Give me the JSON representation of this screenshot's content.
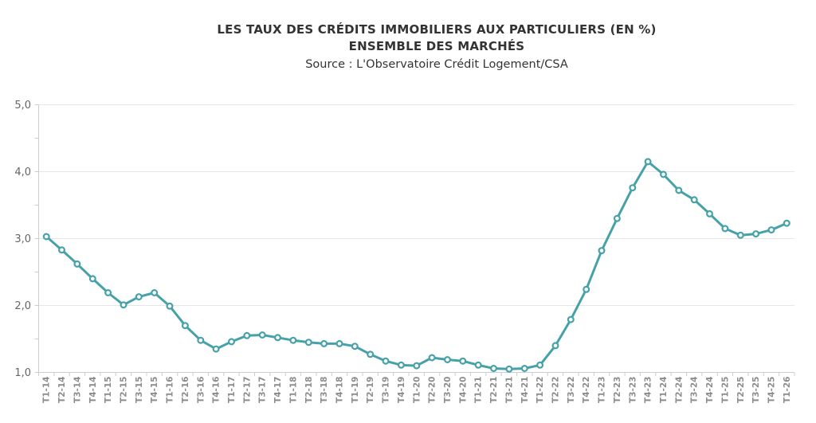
{
  "chart_data": {
    "type": "line",
    "title": "LES TAUX DES CRÉDITS IMMOBILIERS AUX PARTICULIERS (EN %)",
    "subtitle": "ENSEMBLE DES MARCHÉS",
    "source": "Source : L'Observatoire Crédit Logement/CSA",
    "categories": [
      "T1-14",
      "T2-14",
      "T3-14",
      "T4-14",
      "T1-15",
      "T2-15",
      "T3-15",
      "T4-15",
      "T1-16",
      "T2-16",
      "T3-16",
      "T4-16",
      "T1-17",
      "T2-17",
      "T3-17",
      "T4-17",
      "T1-18",
      "T2-18",
      "T3-18",
      "T4-18",
      "T1-19",
      "T2-19",
      "T3-19",
      "T4-19",
      "T1-20",
      "T2-20",
      "T3-20",
      "T4-20",
      "T1-21",
      "T2-21",
      "T3-21",
      "T4-21",
      "T1-22",
      "T2-22",
      "T3-22",
      "T4-22",
      "T1-23",
      "T2-23",
      "T3-23",
      "T4-23",
      "T1-24",
      "T2-24",
      "T3-24",
      "T4-24",
      "T1-25",
      "T2-25",
      "T3-25",
      "T4-25",
      "T1-26"
    ],
    "values": [
      3.03,
      2.83,
      2.62,
      2.4,
      2.19,
      2.01,
      2.13,
      2.19,
      1.99,
      1.7,
      1.48,
      1.35,
      1.46,
      1.55,
      1.56,
      1.52,
      1.48,
      1.45,
      1.43,
      1.43,
      1.39,
      1.27,
      1.17,
      1.11,
      1.1,
      1.22,
      1.19,
      1.17,
      1.11,
      1.06,
      1.05,
      1.06,
      1.11,
      1.4,
      1.79,
      2.24,
      2.82,
      3.3,
      3.76,
      4.15,
      3.96,
      3.72,
      3.58,
      3.37,
      3.15,
      3.05,
      3.07,
      3.13,
      3.23
    ],
    "xlabel": "",
    "ylabel": "",
    "ylim": [
      1.0,
      5.0
    ],
    "ytick_labels": [
      "1,0",
      "2,0",
      "3,0",
      "4,0",
      "5,0"
    ],
    "ytick_values": [
      1.0,
      2.0,
      3.0,
      4.0,
      5.0
    ],
    "yminor_step": 0.5,
    "grid": "horizontal",
    "legend": "none",
    "marker_style": "hollow-circle",
    "colors": {
      "line": "#46a2a8",
      "marker_fill": "#ffffff",
      "grid": "#e6e6e6",
      "axis": "#c9ced1",
      "x_labels": "#8c8c8c",
      "y_labels": "#666666",
      "title": "#333333"
    }
  }
}
